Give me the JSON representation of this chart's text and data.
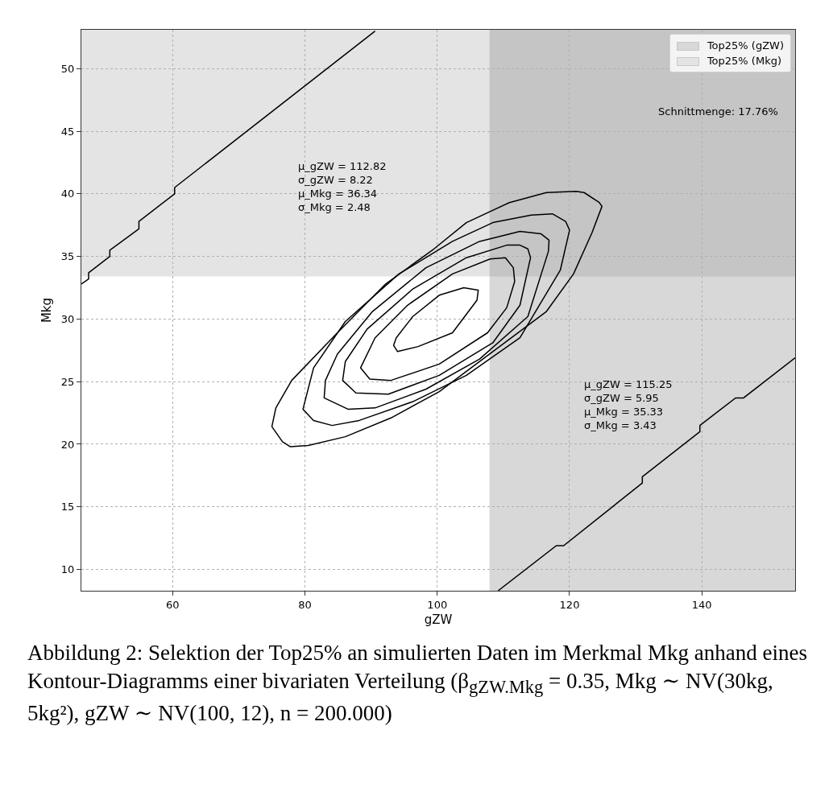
{
  "chart_data": {
    "type": "line",
    "xlabel": "gZW",
    "ylabel": "Mkg",
    "xlim": [
      46.2,
      154.1
    ],
    "ylim": [
      8.3,
      53.1
    ],
    "xticks": [
      60,
      80,
      100,
      120,
      140
    ],
    "yticks": [
      10,
      15,
      20,
      25,
      30,
      35,
      40,
      45,
      50
    ],
    "grid": true,
    "legend": "top right",
    "marker": "none",
    "line_style": "solid",
    "bands": [
      {
        "axis": "x",
        "from": 107.9,
        "to": 154.1,
        "label": "Top25% (gZW)",
        "color": "#d8d8d8"
      },
      {
        "axis": "y",
        "from": 33.4,
        "to": 53.1,
        "label": "Top25% (Mkg)",
        "color": "#e4e4e4"
      }
    ],
    "annotations": [
      "μ_gZW = 112.82\nσ_gZW = 8.22\nμ_Mkg = 36.34\nσ_Mkg = 2.48",
      "Schnittmenge: 17.76%",
      "μ_gZW = 115.25\nσ_gZW = 5.95\nμ_Mkg = 35.33\nσ_Mkg = 3.43",
      "Abbildung 2: Selektion der Top25% an simulierten Daten im Merkmal Mkg anhand eines Kontour-Diagramms einer bivariaten Verteilung (β$_{gZW.Mkg}$ = 0.35, Mkg ∼ NV(30kg, 5kg²), gZW ∼ NV(100, 12), n = 200.000)"
    ],
    "series": [
      {
        "color": "#000000",
        "x": [
          46.2,
          47.3,
          47.3,
          50.5,
          50.5,
          54.9,
          54.9,
          60.3,
          60.3,
          90.6
        ],
        "values": [
          32.8,
          33.2,
          33.7,
          35.0,
          35.5,
          37.2,
          37.8,
          40.0,
          40.5,
          53.0
        ]
      },
      {
        "color": "#000000",
        "x": [
          109.2,
          118.0,
          119.1,
          131.0,
          131.0,
          139.7,
          139.7,
          145.1,
          146.3,
          154.1
        ],
        "values": [
          8.3,
          11.9,
          11.9,
          16.9,
          17.4,
          21.0,
          21.5,
          23.7,
          23.7,
          26.9
        ]
      }
    ]
  }
}
